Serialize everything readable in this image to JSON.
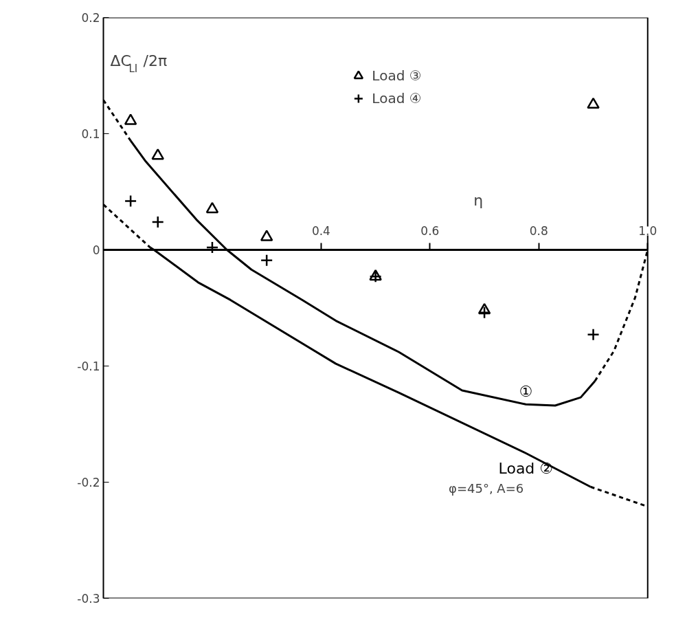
{
  "chart_data": {
    "type": "line",
    "xlabel": "η",
    "ylabel": "ΔC$_{LI}$/2π",
    "xlim": [
      0,
      1.0
    ],
    "ylim": [
      -0.3,
      0.2
    ],
    "xticks": [
      0.4,
      0.6,
      0.8,
      {
        "value": 1.0,
        "label": "1.0"
      }
    ],
    "yticks": [
      0.2,
      0.1,
      0,
      -0.1,
      -0.2,
      -0.3
    ],
    "grid": false,
    "legend": "top",
    "annotations": [
      "φ=45°,  A=6"
    ],
    "series": [
      {
        "line_style": "dashed",
        "color": "#000000",
        "x": [
          0,
          0.05
        ],
        "values": [
          0.129,
          0.094
        ]
      },
      {
        "line_style": "solid",
        "color": "#000000",
        "name": "①",
        "x": [
          0.05,
          0.078,
          0.171,
          0.227,
          0.272,
          0.365,
          0.427,
          0.543,
          0.659,
          0.776,
          0.83,
          0.877,
          0.903
        ],
        "values": [
          0.094,
          0.076,
          0.026,
          0,
          -0.017,
          -0.043,
          -0.061,
          -0.088,
          -0.121,
          -0.133,
          -0.134,
          -0.127,
          -0.113
        ]
      },
      {
        "line_style": "dashed",
        "color": "#000000",
        "x": [
          0.903,
          0.938,
          0.977,
          1.0
        ],
        "values": [
          -0.113,
          -0.087,
          -0.041,
          0
        ]
      },
      {
        "line_style": "dashed",
        "color": "#000000",
        "x": [
          0,
          0.086
        ],
        "values": [
          0.039,
          0.002
        ]
      },
      {
        "line_style": "solid",
        "color": "#000000",
        "name": "Load ②",
        "x": [
          0.086,
          0.093,
          0.174,
          0.233,
          0.427,
          0.543,
          0.776,
          0.895
        ],
        "values": [
          0.002,
          0,
          -0.028,
          -0.043,
          -0.098,
          -0.123,
          -0.175,
          -0.204
        ]
      },
      {
        "line_style": "dashed",
        "color": "#000000",
        "x": [
          0.895,
          1.0
        ],
        "values": [
          -0.204,
          -0.221
        ]
      },
      {
        "type": "scatter",
        "marker": "triangle",
        "color": "#000000",
        "name": "Load ③",
        "x": [
          0.05,
          0.1,
          0.2,
          0.3,
          0.5,
          0.7,
          0.9
        ],
        "values": [
          0.111,
          0.081,
          0.035,
          0.011,
          -0.023,
          -0.052,
          0.125
        ]
      },
      {
        "type": "scatter",
        "marker": "cross",
        "color": "#000000",
        "name": "Load ④",
        "x": [
          0.05,
          0.1,
          0.2,
          0.3,
          0.5,
          0.7,
          0.9
        ],
        "values": [
          0.042,
          0.024,
          0.002,
          -0.009,
          -0.023,
          -0.054,
          -0.073
        ]
      }
    ]
  }
}
